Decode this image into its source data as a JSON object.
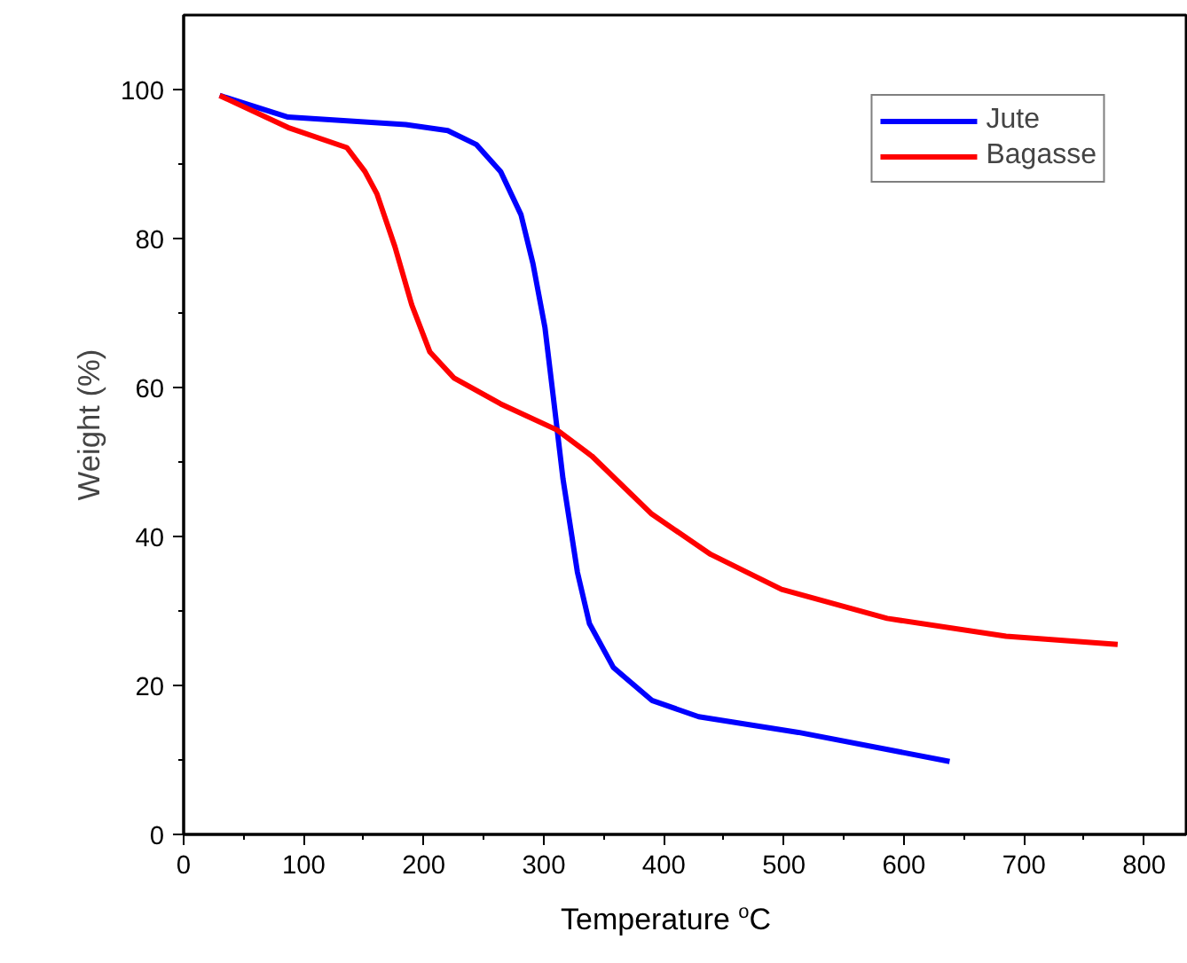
{
  "chart_data": {
    "type": "line",
    "xlabel": "Temperature $^{o}$C",
    "ylabel": "Weight (%)",
    "xlim": [
      0,
      835
    ],
    "ylim": [
      0,
      110
    ],
    "xticks": [
      0,
      100,
      200,
      300,
      400,
      500,
      600,
      700,
      800
    ],
    "yticks": [
      0,
      20,
      40,
      60,
      80,
      100
    ],
    "grid": false,
    "legend": "top right",
    "line_style": "solid",
    "marker": "none",
    "series": [
      {
        "name": "Jute",
        "color": "#0000ff",
        "x": [
          30,
          87,
          185,
          220,
          244,
          264,
          281,
          291,
          301,
          308,
          316,
          328,
          338,
          358,
          390,
          429,
          512,
          638
        ],
        "values": [
          99.2,
          96.3,
          95.3,
          94.5,
          92.6,
          89,
          83.2,
          76.6,
          68,
          58.6,
          47.7,
          35.2,
          28.3,
          22.4,
          18,
          15.8,
          13.7,
          9.8
        ]
      },
      {
        "name": "Bagasse",
        "color": "#ff0000",
        "x": [
          30,
          87,
          136,
          151,
          161,
          176,
          190,
          205,
          225,
          264,
          311,
          340,
          390,
          439,
          498,
          586,
          685,
          778
        ],
        "values": [
          99.2,
          94.9,
          92.2,
          89,
          86,
          78.9,
          71.1,
          64.8,
          61.3,
          57.8,
          54.3,
          50.8,
          43,
          37.6,
          32.9,
          29,
          26.6,
          25.5
        ]
      }
    ]
  }
}
